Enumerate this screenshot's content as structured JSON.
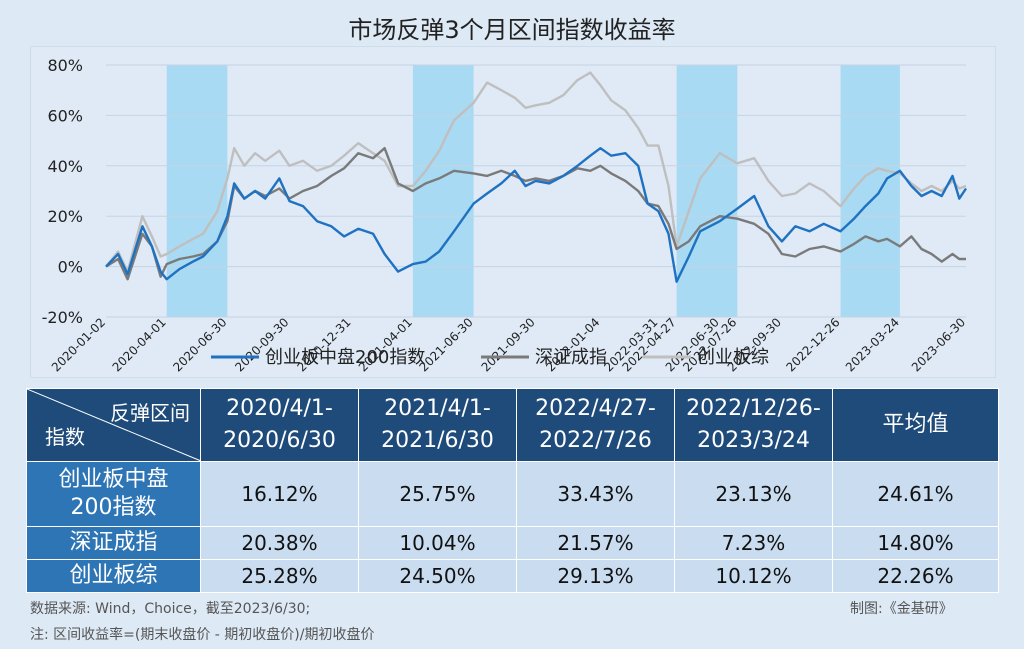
{
  "title": "市场反弹3个月区间指数收益率",
  "chart_data": {
    "type": "line",
    "title": "市场反弹3个月区间指数收益率",
    "ylim": [
      -20,
      80
    ],
    "yticks": [
      -20,
      0,
      20,
      40,
      60,
      80
    ],
    "ytick_labels": [
      "-20%",
      "0%",
      "20%",
      "40%",
      "60%",
      "80%"
    ],
    "xticks": [
      "2020-01-02",
      "2020-04-01",
      "2020-06-30",
      "2020-09-30",
      "2020-12-31",
      "2021-04-01",
      "2021-06-30",
      "2021-09-30",
      "2022-01-04",
      "2022-03-31",
      "2022-04-27",
      "2022-06-30",
      "2022-07-26",
      "2022-09-30",
      "2022-12-26",
      "2023-03-24",
      "2023-06-30"
    ],
    "shaded_periods": [
      [
        "2020-04-01",
        "2020-06-30"
      ],
      [
        "2021-04-01",
        "2021-06-30"
      ],
      [
        "2022-04-27",
        "2022-07-26"
      ],
      [
        "2022-12-26",
        "2023-03-24"
      ]
    ],
    "shade_color": "#a9daf3",
    "series": [
      {
        "name": "创业板中盘200指数",
        "color": "#1f72c2",
        "points": [
          [
            "2020-01-02",
            0
          ],
          [
            "2020-01-20",
            5
          ],
          [
            "2020-02-03",
            -3
          ],
          [
            "2020-02-25",
            16
          ],
          [
            "2020-03-10",
            8
          ],
          [
            "2020-03-23",
            -2
          ],
          [
            "2020-04-01",
            -5
          ],
          [
            "2020-04-20",
            -1
          ],
          [
            "2020-05-10",
            2
          ],
          [
            "2020-05-25",
            4
          ],
          [
            "2020-06-15",
            10
          ],
          [
            "2020-06-30",
            20
          ],
          [
            "2020-07-10",
            33
          ],
          [
            "2020-07-25",
            27
          ],
          [
            "2020-08-10",
            30
          ],
          [
            "2020-08-25",
            27
          ],
          [
            "2020-09-15",
            35
          ],
          [
            "2020-09-30",
            26
          ],
          [
            "2020-10-20",
            24
          ],
          [
            "2020-11-10",
            18
          ],
          [
            "2020-12-01",
            16
          ],
          [
            "2020-12-20",
            12
          ],
          [
            "2021-01-10",
            15
          ],
          [
            "2021-02-01",
            13
          ],
          [
            "2021-02-18",
            5
          ],
          [
            "2021-03-10",
            -2
          ],
          [
            "2021-04-01",
            1
          ],
          [
            "2021-04-20",
            2
          ],
          [
            "2021-05-10",
            6
          ],
          [
            "2021-06-01",
            14
          ],
          [
            "2021-06-30",
            25
          ],
          [
            "2021-07-20",
            29
          ],
          [
            "2021-08-10",
            33
          ],
          [
            "2021-08-30",
            38
          ],
          [
            "2021-09-15",
            32
          ],
          [
            "2021-09-30",
            34
          ],
          [
            "2021-10-20",
            33
          ],
          [
            "2021-11-10",
            36
          ],
          [
            "2021-12-01",
            40
          ],
          [
            "2021-12-20",
            44
          ],
          [
            "2022-01-04",
            47
          ],
          [
            "2022-01-20",
            44
          ],
          [
            "2022-02-10",
            45
          ],
          [
            "2022-03-01",
            40
          ],
          [
            "2022-03-15",
            25
          ],
          [
            "2022-03-31",
            22
          ],
          [
            "2022-04-15",
            13
          ],
          [
            "2022-04-27",
            -6
          ],
          [
            "2022-05-15",
            4
          ],
          [
            "2022-06-01",
            14
          ],
          [
            "2022-06-30",
            18
          ],
          [
            "2022-07-26",
            23
          ],
          [
            "2022-08-20",
            28
          ],
          [
            "2022-09-10",
            16
          ],
          [
            "2022-09-30",
            10
          ],
          [
            "2022-10-20",
            16
          ],
          [
            "2022-11-10",
            14
          ],
          [
            "2022-12-01",
            17
          ],
          [
            "2022-12-26",
            14
          ],
          [
            "2023-01-15",
            19
          ],
          [
            "2023-02-01",
            24
          ],
          [
            "2023-02-20",
            29
          ],
          [
            "2023-03-05",
            35
          ],
          [
            "2023-03-24",
            38
          ],
          [
            "2023-04-10",
            32
          ],
          [
            "2023-04-25",
            28
          ],
          [
            "2023-05-10",
            30
          ],
          [
            "2023-05-25",
            28
          ],
          [
            "2023-06-10",
            36
          ],
          [
            "2023-06-20",
            27
          ],
          [
            "2023-06-30",
            31
          ]
        ]
      },
      {
        "name": "深证成指",
        "color": "#7a7a7a",
        "points": [
          [
            "2020-01-02",
            0
          ],
          [
            "2020-01-20",
            3
          ],
          [
            "2020-02-03",
            -5
          ],
          [
            "2020-02-25",
            13
          ],
          [
            "2020-03-10",
            8
          ],
          [
            "2020-03-23",
            -4
          ],
          [
            "2020-04-01",
            1
          ],
          [
            "2020-04-20",
            3
          ],
          [
            "2020-05-10",
            4
          ],
          [
            "2020-05-25",
            5
          ],
          [
            "2020-06-15",
            10
          ],
          [
            "2020-06-30",
            18
          ],
          [
            "2020-07-10",
            32
          ],
          [
            "2020-07-25",
            27
          ],
          [
            "2020-08-10",
            30
          ],
          [
            "2020-08-25",
            28
          ],
          [
            "2020-09-15",
            31
          ],
          [
            "2020-09-30",
            27
          ],
          [
            "2020-10-20",
            30
          ],
          [
            "2020-11-10",
            32
          ],
          [
            "2020-12-01",
            36
          ],
          [
            "2020-12-20",
            39
          ],
          [
            "2021-01-10",
            45
          ],
          [
            "2021-02-01",
            43
          ],
          [
            "2021-02-18",
            47
          ],
          [
            "2021-03-10",
            33
          ],
          [
            "2021-04-01",
            30
          ],
          [
            "2021-04-20",
            33
          ],
          [
            "2021-05-10",
            35
          ],
          [
            "2021-06-01",
            38
          ],
          [
            "2021-06-30",
            37
          ],
          [
            "2021-07-20",
            36
          ],
          [
            "2021-08-10",
            38
          ],
          [
            "2021-08-30",
            36
          ],
          [
            "2021-09-15",
            34
          ],
          [
            "2021-09-30",
            35
          ],
          [
            "2021-10-20",
            34
          ],
          [
            "2021-11-10",
            36
          ],
          [
            "2021-12-01",
            39
          ],
          [
            "2021-12-20",
            38
          ],
          [
            "2022-01-04",
            40
          ],
          [
            "2022-01-20",
            37
          ],
          [
            "2022-02-10",
            34
          ],
          [
            "2022-03-01",
            30
          ],
          [
            "2022-03-15",
            25
          ],
          [
            "2022-03-31",
            24
          ],
          [
            "2022-04-15",
            17
          ],
          [
            "2022-04-27",
            7
          ],
          [
            "2022-05-15",
            10
          ],
          [
            "2022-06-01",
            16
          ],
          [
            "2022-06-30",
            20
          ],
          [
            "2022-07-26",
            19
          ],
          [
            "2022-08-20",
            17
          ],
          [
            "2022-09-10",
            13
          ],
          [
            "2022-09-30",
            5
          ],
          [
            "2022-10-20",
            4
          ],
          [
            "2022-11-10",
            7
          ],
          [
            "2022-12-01",
            8
          ],
          [
            "2022-12-26",
            6
          ],
          [
            "2023-01-15",
            9
          ],
          [
            "2023-02-01",
            12
          ],
          [
            "2023-02-20",
            10
          ],
          [
            "2023-03-05",
            11
          ],
          [
            "2023-03-24",
            8
          ],
          [
            "2023-04-10",
            12
          ],
          [
            "2023-04-25",
            7
          ],
          [
            "2023-05-10",
            5
          ],
          [
            "2023-05-25",
            2
          ],
          [
            "2023-06-10",
            5
          ],
          [
            "2023-06-20",
            3
          ],
          [
            "2023-06-30",
            3
          ]
        ]
      },
      {
        "name": "创业板综",
        "color": "#bfbfbf",
        "points": [
          [
            "2020-01-02",
            0
          ],
          [
            "2020-01-20",
            6
          ],
          [
            "2020-02-03",
            -2
          ],
          [
            "2020-02-25",
            20
          ],
          [
            "2020-03-10",
            12
          ],
          [
            "2020-03-23",
            4
          ],
          [
            "2020-04-01",
            5
          ],
          [
            "2020-04-20",
            8
          ],
          [
            "2020-05-10",
            11
          ],
          [
            "2020-05-25",
            13
          ],
          [
            "2020-06-15",
            22
          ],
          [
            "2020-06-30",
            35
          ],
          [
            "2020-07-10",
            47
          ],
          [
            "2020-07-25",
            40
          ],
          [
            "2020-08-10",
            45
          ],
          [
            "2020-08-25",
            42
          ],
          [
            "2020-09-15",
            46
          ],
          [
            "2020-09-30",
            40
          ],
          [
            "2020-10-20",
            42
          ],
          [
            "2020-11-10",
            38
          ],
          [
            "2020-12-01",
            40
          ],
          [
            "2020-12-20",
            44
          ],
          [
            "2021-01-10",
            49
          ],
          [
            "2021-02-01",
            45
          ],
          [
            "2021-02-18",
            42
          ],
          [
            "2021-03-10",
            32
          ],
          [
            "2021-04-01",
            32
          ],
          [
            "2021-04-20",
            38
          ],
          [
            "2021-05-10",
            46
          ],
          [
            "2021-06-01",
            58
          ],
          [
            "2021-06-30",
            65
          ],
          [
            "2021-07-20",
            73
          ],
          [
            "2021-08-10",
            70
          ],
          [
            "2021-08-30",
            67
          ],
          [
            "2021-09-15",
            63
          ],
          [
            "2021-09-30",
            64
          ],
          [
            "2021-10-20",
            65
          ],
          [
            "2021-11-10",
            68
          ],
          [
            "2021-12-01",
            74
          ],
          [
            "2021-12-20",
            77
          ],
          [
            "2022-01-04",
            72
          ],
          [
            "2022-01-20",
            66
          ],
          [
            "2022-02-10",
            62
          ],
          [
            "2022-03-01",
            55
          ],
          [
            "2022-03-15",
            48
          ],
          [
            "2022-03-31",
            48
          ],
          [
            "2022-04-15",
            32
          ],
          [
            "2022-04-27",
            8
          ],
          [
            "2022-05-15",
            22
          ],
          [
            "2022-06-01",
            35
          ],
          [
            "2022-06-30",
            45
          ],
          [
            "2022-07-26",
            41
          ],
          [
            "2022-08-20",
            43
          ],
          [
            "2022-09-10",
            34
          ],
          [
            "2022-09-30",
            28
          ],
          [
            "2022-10-20",
            29
          ],
          [
            "2022-11-10",
            33
          ],
          [
            "2022-12-01",
            30
          ],
          [
            "2022-12-26",
            24
          ],
          [
            "2023-01-15",
            31
          ],
          [
            "2023-02-01",
            36
          ],
          [
            "2023-02-20",
            39
          ],
          [
            "2023-03-05",
            38
          ],
          [
            "2023-03-24",
            37
          ],
          [
            "2023-04-10",
            33
          ],
          [
            "2023-04-25",
            30
          ],
          [
            "2023-05-10",
            32
          ],
          [
            "2023-05-25",
            30
          ],
          [
            "2023-06-10",
            34
          ],
          [
            "2023-06-20",
            31
          ],
          [
            "2023-06-30",
            32
          ]
        ]
      }
    ]
  },
  "table": {
    "corner_top": "反弹区间",
    "corner_bottom": "指数",
    "headers": [
      {
        "l1": "2020/4/1-",
        "l2": "2020/6/30"
      },
      {
        "l1": "2021/4/1-",
        "l2": "2021/6/30"
      },
      {
        "l1": "2022/4/27-",
        "l2": "2022/7/26"
      },
      {
        "l1": "2022/12/26-",
        "l2": "2023/3/24"
      },
      {
        "l1": "平均值",
        "l2": ""
      }
    ],
    "rows": [
      {
        "name_l1": "创业板中盘",
        "name_l2": "200指数",
        "values": [
          "16.12%",
          "25.75%",
          "33.43%",
          "23.13%",
          "24.61%"
        ]
      },
      {
        "name_l1": "深证成指",
        "name_l2": "",
        "values": [
          "20.38%",
          "10.04%",
          "21.57%",
          "7.23%",
          "14.80%"
        ]
      },
      {
        "name_l1": "创业板综",
        "name_l2": "",
        "values": [
          "25.28%",
          "24.50%",
          "29.13%",
          "10.12%",
          "22.26%"
        ]
      }
    ]
  },
  "footer": {
    "source": "数据来源: Wind，Choice，截至2023/6/30;",
    "credit": "制图:《金基研》",
    "note": "注: 区间收益率=(期末收盘价 - 期初收盘价)/期初收盘价"
  }
}
